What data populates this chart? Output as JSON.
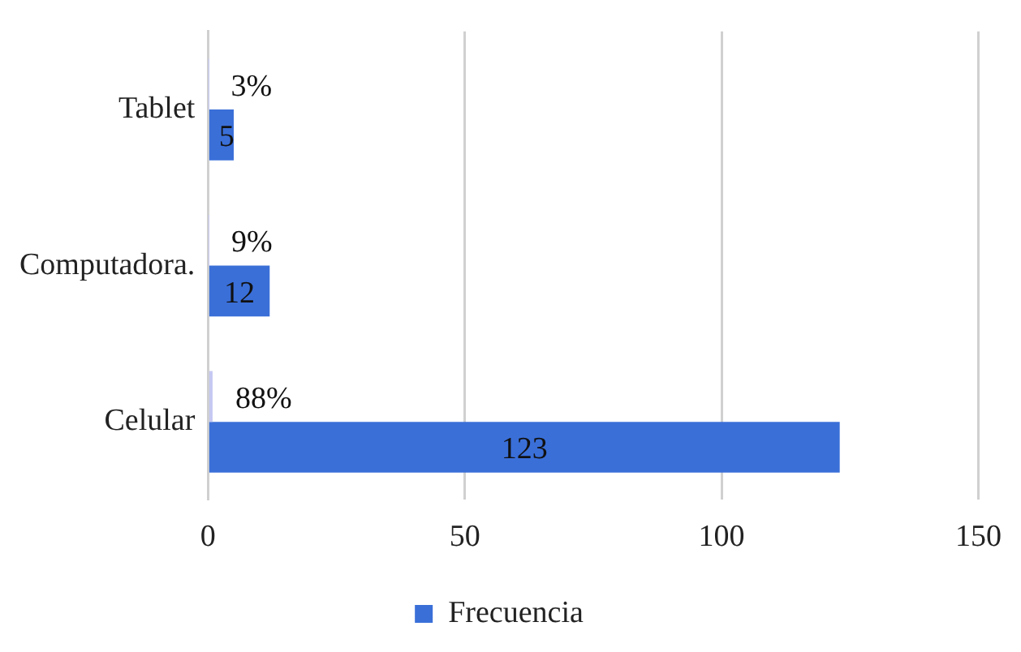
{
  "chart_data": {
    "type": "bar",
    "orientation": "horizontal",
    "categories": [
      "Tablet",
      "Computadora.",
      "Celular"
    ],
    "series": [
      {
        "color": "#c5c8f2",
        "values": [
          0.03,
          0.09,
          0.88
        ],
        "value_labels": [
          "3%",
          "9%",
          "88%"
        ]
      },
      {
        "name": "Frecuencia",
        "color": "#3a6fd8",
        "values": [
          5,
          12,
          123
        ],
        "value_labels": [
          "5",
          "12",
          "123"
        ]
      }
    ],
    "xlim": [
      0,
      150
    ],
    "xticks": [
      0,
      50,
      100,
      150
    ],
    "grid": "x",
    "legend": "bottom"
  }
}
